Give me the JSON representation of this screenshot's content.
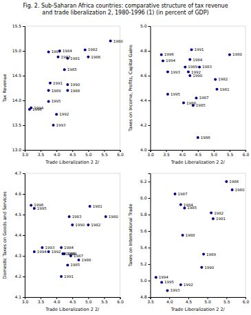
{
  "title": "Fig. 2. Sub-Saharan Africa countries: comparative structure of tax revenue\nand trade liberalization 2, 1980-1996 (1) (in percent of GDP)",
  "chart_data": [
    {
      "type": "scatter",
      "xlabel": "Trade Liberalization 2 2/",
      "ylabel": "Tax Revenue",
      "xlim": [
        3.0,
        6.0
      ],
      "ylim": [
        13.0,
        15.5
      ],
      "xticks": [
        {
          "value": 3.0,
          "label": "3.0"
        },
        3.5,
        {
          "value": 4.0,
          "label": "4.0"
        },
        4.5,
        {
          "value": 5.0,
          "label": "5.0"
        },
        5.5,
        {
          "value": 6.0,
          "label": "6.0"
        }
      ],
      "yticks": [
        {
          "value": 13.0,
          "label": "13.0"
        },
        13.5,
        {
          "value": 14.0,
          "label": "14.0"
        },
        14.5,
        {
          "value": 15.0,
          "label": "15.0"
        },
        15.5
      ],
      "x": [
        5.7,
        4.9,
        5.0,
        3.75,
        4.1,
        4.05,
        4.35,
        4.25,
        3.8,
        4.35,
        3.75,
        4.35,
        3.2,
        3.75,
        3.15,
        4.0,
        3.9
      ],
      "values": [
        15.2,
        15.02,
        14.88,
        14.98,
        15.0,
        14.88,
        14.85,
        14.62,
        14.35,
        14.32,
        14.2,
        14.2,
        13.85,
        13.98,
        13.82,
        13.72,
        13.5
      ],
      "labels": [
        "1980",
        "1982",
        "1986",
        "1987",
        "1984",
        "1983",
        "1981",
        "1985",
        "1991",
        "1990",
        "1989",
        "1988",
        "1994",
        "1995",
        "1996",
        "1992",
        "1993"
      ],
      "color": "#00008B",
      "grid": false
    },
    {
      "type": "scatter",
      "xlabel": "Trade Liberalization 2 2/",
      "ylabel": "Taxes on Income, Profits, Capital Gains",
      "xlim": [
        3.0,
        6.0
      ],
      "ylim": [
        4.0,
        5.0
      ],
      "xticks": [
        {
          "value": 3.0,
          "label": "3.0"
        },
        3.5,
        {
          "value": 4.0,
          "label": "4.0"
        },
        4.5,
        {
          "value": 5.0,
          "label": "5.0"
        },
        5.5,
        {
          "value": 6.0,
          "label": "6.0"
        }
      ],
      "yticks": [
        {
          "value": 4.0,
          "label": "4.0"
        },
        4.2,
        4.4,
        4.6,
        4.8,
        {
          "value": 5.0,
          "label": "5.0"
        }
      ],
      "x": [
        5.5,
        4.3,
        3.35,
        3.4,
        4.25,
        4.1,
        4.55,
        4.2,
        3.55,
        4.25,
        5.05,
        5.1,
        3.55,
        4.05,
        4.45,
        4.35,
        4.5
      ],
      "values": [
        4.77,
        4.81,
        4.77,
        4.72,
        4.73,
        4.67,
        4.67,
        4.63,
        4.63,
        4.6,
        4.57,
        4.49,
        4.45,
        4.38,
        4.42,
        4.36,
        4.1
      ],
      "labels": [
        "1980",
        "1991",
        "1996",
        "1994",
        "1984",
        "1989",
        "1983",
        "1992",
        "1993",
        "1990",
        "1982",
        "1981",
        "1995",
        "1988",
        "1987",
        "1985",
        "1986"
      ],
      "color": "#00008B",
      "grid": false
    },
    {
      "type": "scatter",
      "xlabel": "Trade Liberalization 2 2/",
      "ylabel": "Domestic Taxes on Goods and Services",
      "xlim": [
        3.0,
        6.0
      ],
      "ylim": [
        4.1,
        4.7
      ],
      "xticks": [
        {
          "value": 3.0,
          "label": "3.0"
        },
        3.5,
        {
          "value": 4.0,
          "label": "4.0"
        },
        4.5,
        {
          "value": 5.0,
          "label": "5.0"
        },
        5.5,
        {
          "value": 6.0,
          "label": "6.0"
        }
      ],
      "yticks": [
        4.1,
        4.2,
        4.3,
        4.4,
        4.5,
        4.6,
        4.7
      ],
      "x": [
        3.2,
        3.3,
        5.05,
        5.55,
        4.4,
        4.5,
        5.0,
        3.55,
        4.15,
        3.3,
        3.75,
        4.2,
        4.25,
        4.45,
        4.7,
        4.35,
        4.15
      ],
      "values": [
        4.545,
        4.53,
        4.54,
        4.49,
        4.49,
        4.45,
        4.45,
        4.34,
        4.34,
        4.32,
        4.32,
        4.31,
        4.31,
        4.3,
        4.28,
        4.255,
        4.2
      ],
      "labels": [
        "1996",
        "1995",
        "1981",
        "1980",
        "1983",
        "1990",
        "1982",
        "1993",
        "1984",
        "1994",
        "1992",
        "1988",
        "1989",
        "1987",
        "1986",
        "1985",
        "1991"
      ],
      "color": "#00008B",
      "grid": false
    },
    {
      "type": "scatter",
      "xlabel": "Trade Liberalization 2 2/",
      "ylabel": "Taxes on International Trade",
      "xlim": [
        3.5,
        6.0
      ],
      "ylim": [
        4.8,
        6.3
      ],
      "xticks": [
        3.5,
        {
          "value": 4.0,
          "label": "4.0"
        },
        4.5,
        {
          "value": 5.0,
          "label": "5.0"
        },
        5.5,
        {
          "value": 6.0,
          "label": "6.0"
        }
      ],
      "yticks": [
        4.8,
        {
          "value": 5.0,
          "label": "5.0"
        },
        5.2,
        5.4,
        5.6,
        5.8,
        {
          "value": 6.0,
          "label": "6.0"
        },
        6.2
      ],
      "x": [
        5.5,
        5.65,
        4.15,
        4.3,
        4.4,
        5.1,
        5.15,
        4.35,
        4.9,
        4.85,
        3.65,
        3.8,
        4.3,
        3.95
      ],
      "values": [
        6.2,
        6.1,
        6.05,
        5.92,
        5.88,
        5.82,
        5.75,
        5.55,
        5.32,
        5.16,
        5.04,
        4.98,
        4.95,
        4.88
      ],
      "labels": [
        "1986",
        "1980",
        "1987",
        "1984",
        "1985",
        "1982",
        "1981",
        "1988",
        "1989",
        "1990",
        "1994",
        "1995",
        "1992",
        "1993"
      ],
      "color": "#00008B",
      "grid": false
    }
  ]
}
